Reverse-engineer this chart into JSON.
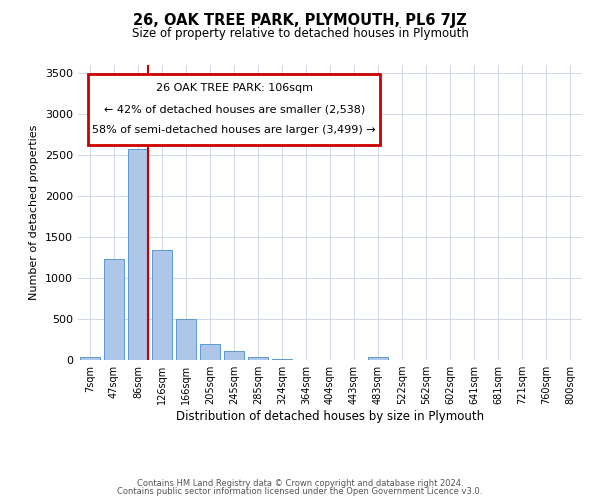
{
  "title": "26, OAK TREE PARK, PLYMOUTH, PL6 7JZ",
  "subtitle": "Size of property relative to detached houses in Plymouth",
  "xlabel": "Distribution of detached houses by size in Plymouth",
  "ylabel": "Number of detached properties",
  "footer_line1": "Contains HM Land Registry data © Crown copyright and database right 2024.",
  "footer_line2": "Contains public sector information licensed under the Open Government Licence v3.0.",
  "bar_labels": [
    "7sqm",
    "47sqm",
    "86sqm",
    "126sqm",
    "166sqm",
    "205sqm",
    "245sqm",
    "285sqm",
    "324sqm",
    "364sqm",
    "404sqm",
    "443sqm",
    "483sqm",
    "522sqm",
    "562sqm",
    "602sqm",
    "641sqm",
    "681sqm",
    "721sqm",
    "760sqm",
    "800sqm"
  ],
  "bar_values": [
    40,
    1230,
    2570,
    1340,
    500,
    200,
    105,
    40,
    10,
    5,
    2,
    2,
    40,
    0,
    0,
    0,
    0,
    0,
    0,
    0,
    0
  ],
  "bar_color": "#aec6e8",
  "bar_edge_color": "#5b9bd5",
  "property_label": "26 OAK TREE PARK: 106sqm",
  "annotation_line1": "← 42% of detached houses are smaller (2,538)",
  "annotation_line2": "58% of semi-detached houses are larger (3,499) →",
  "vline_color": "#cc0000",
  "vline_pos": 2.43,
  "ylim": [
    0,
    3600
  ],
  "yticks": [
    0,
    500,
    1000,
    1500,
    2000,
    2500,
    3000,
    3500
  ],
  "annotation_box_color": "#cc0000",
  "bg_color": "#ffffff",
  "grid_color": "#d0d8e8"
}
